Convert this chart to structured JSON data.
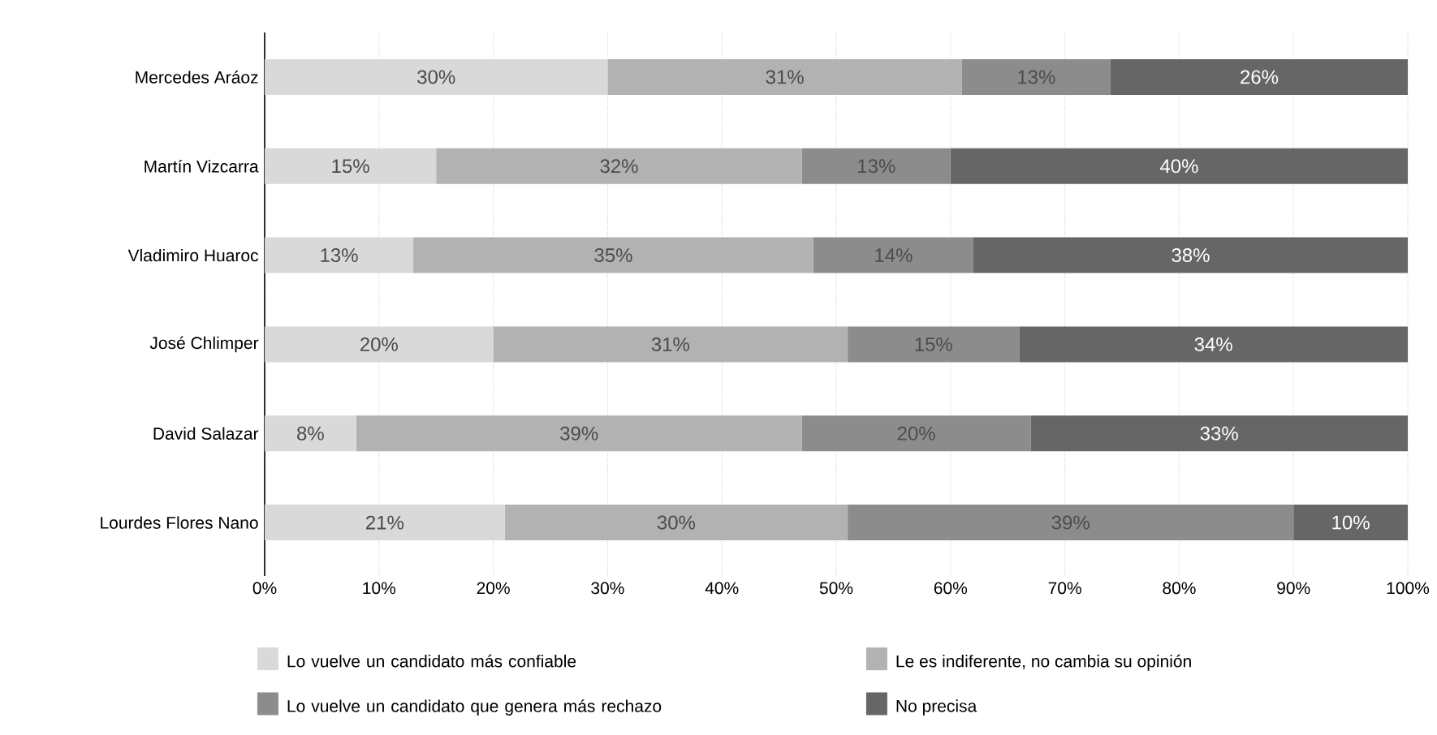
{
  "chart_data": {
    "type": "bar",
    "orientation": "horizontal",
    "stacked": true,
    "categories": [
      "Mercedes Aráoz",
      "Martín Vizcarra",
      "Vladimiro Huaroc",
      "José Chlimper",
      "David Salazar",
      "Lourdes Flores Nano"
    ],
    "series": [
      {
        "name": "Lo vuelve un candidato más confiable",
        "color": "#d9d9d9",
        "values": [
          30,
          15,
          13,
          20,
          8,
          21
        ],
        "value_labels": [
          "30%",
          "15%",
          "13%",
          "20%",
          "8%",
          "21%"
        ]
      },
      {
        "name": "Le es indiferente, no cambia su opinión",
        "color": "#b2b2b2",
        "values": [
          31,
          32,
          35,
          31,
          39,
          30
        ],
        "value_labels": [
          "31%",
          "32%",
          "35%",
          "31%",
          "39%",
          "30%"
        ]
      },
      {
        "name": "Lo vuelve un candidato que genera más rechazo",
        "color": "#8c8c8c",
        "values": [
          13,
          13,
          14,
          15,
          20,
          39
        ],
        "value_labels": [
          "13%",
          "13%",
          "14%",
          "15%",
          "20%",
          "39%"
        ]
      },
      {
        "name": "No precisa",
        "color": "#666666",
        "values": [
          26,
          40,
          38,
          34,
          33,
          10
        ],
        "value_labels": [
          "26%",
          "40%",
          "38%",
          "34%",
          "33%",
          "10%"
        ]
      }
    ],
    "xlim": [
      0,
      100
    ],
    "xticks": [
      {
        "value": 0,
        "label": "0%"
      },
      {
        "value": 10,
        "label": "10%"
      },
      {
        "value": 20,
        "label": "20%"
      },
      {
        "value": 30,
        "label": "30%"
      },
      {
        "value": 40,
        "label": "40%"
      },
      {
        "value": 50,
        "label": "50%"
      },
      {
        "value": 60,
        "label": "60%"
      },
      {
        "value": 70,
        "label": "70%"
      },
      {
        "value": 80,
        "label": "80%"
      },
      {
        "value": 90,
        "label": "90%"
      },
      {
        "value": 100,
        "label": "100%"
      }
    ],
    "grid": "x",
    "legend": "bottom"
  }
}
